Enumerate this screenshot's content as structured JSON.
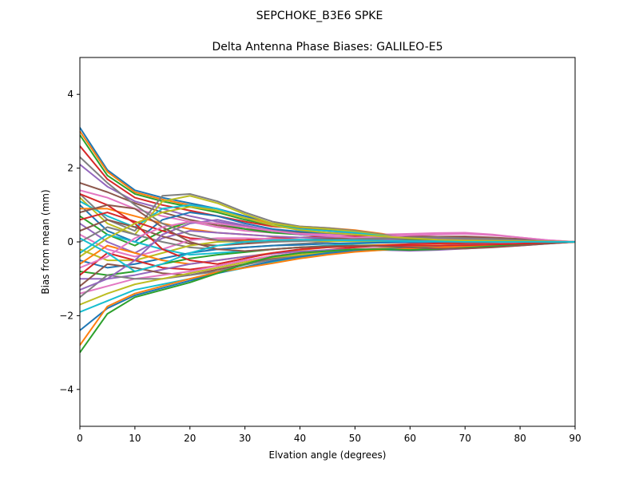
{
  "chart_data": {
    "type": "line",
    "suptitle": "SEPCHOKE_B3E6   SPKE",
    "title": "Delta Antenna Phase Biases: GALILEO-E5",
    "xlabel": "Elvation angle (degrees)",
    "ylabel": "Bias from mean (mm)",
    "xlim": [
      0,
      90
    ],
    "ylim": [
      -5,
      5
    ],
    "x_ticks": [
      0,
      10,
      20,
      30,
      40,
      50,
      60,
      70,
      80,
      90
    ],
    "y_ticks": [
      -4,
      -2,
      0,
      2,
      4
    ],
    "x_tick_labels": [
      "0",
      "10",
      "20",
      "30",
      "40",
      "50",
      "60",
      "70",
      "80",
      "90"
    ],
    "y_tick_labels": [
      "−4",
      "−2",
      "0",
      "2",
      "4"
    ],
    "grid": false,
    "legend": "none",
    "colors": [
      "#1f77b4",
      "#ff7f0e",
      "#2ca02c",
      "#d62728",
      "#9467bd",
      "#8c564b",
      "#e377c2",
      "#7f7f7f",
      "#bcbd22",
      "#17becf"
    ],
    "x": [
      0,
      5,
      10,
      15,
      20,
      25,
      30,
      35,
      40,
      45,
      50,
      55,
      60,
      65,
      70,
      75,
      80,
      85,
      90
    ],
    "series": [
      {
        "values": [
          3.1,
          1.95,
          1.4,
          1.2,
          1.05,
          0.9,
          0.7,
          0.5,
          0.4,
          0.35,
          0.3,
          0.2,
          0.12,
          0.08,
          0.05,
          0.03,
          0.02,
          0.01,
          0
        ]
      },
      {
        "values": [
          3.0,
          1.9,
          1.35,
          1.15,
          1.0,
          0.85,
          0.65,
          0.5,
          0.42,
          0.38,
          0.32,
          0.22,
          0.1,
          0.05,
          0.04,
          0.03,
          0.02,
          0.01,
          0
        ]
      },
      {
        "values": [
          2.9,
          1.8,
          1.3,
          1.1,
          0.95,
          0.8,
          0.6,
          0.45,
          0.4,
          0.34,
          0.28,
          0.18,
          0.08,
          0.05,
          0.04,
          0.03,
          0.02,
          0.01,
          0
        ]
      },
      {
        "values": [
          2.6,
          1.7,
          1.2,
          1.0,
          0.85,
          0.7,
          0.55,
          0.42,
          0.36,
          0.3,
          0.25,
          0.16,
          0.07,
          0.04,
          0.03,
          0.02,
          0.02,
          0.01,
          0
        ]
      },
      {
        "values": [
          2.1,
          1.5,
          1.1,
          0.9,
          0.7,
          0.55,
          0.42,
          0.32,
          0.28,
          0.25,
          0.22,
          0.18,
          0.14,
          0.1,
          0.07,
          0.05,
          0.03,
          0.01,
          0
        ]
      },
      {
        "values": [
          1.6,
          1.35,
          1.05,
          0.8,
          0.6,
          0.45,
          0.35,
          0.3,
          0.25,
          0.22,
          0.2,
          0.18,
          0.16,
          0.14,
          0.12,
          0.08,
          0.05,
          0.02,
          0
        ]
      },
      {
        "values": [
          1.4,
          1.2,
          0.9,
          0.7,
          0.55,
          0.4,
          0.3,
          0.25,
          0.22,
          0.2,
          0.18,
          0.2,
          0.22,
          0.24,
          0.25,
          0.2,
          0.12,
          0.05,
          0
        ]
      },
      {
        "values": [
          1.3,
          0.6,
          0.3,
          1.25,
          1.3,
          1.1,
          0.8,
          0.55,
          0.42,
          0.38,
          0.3,
          0.2,
          0.1,
          0.06,
          0.04,
          0.03,
          0.02,
          0.01,
          0
        ]
      },
      {
        "values": [
          1.2,
          0.5,
          0.2,
          1.1,
          1.25,
          1.05,
          0.75,
          0.5,
          0.4,
          0.35,
          0.28,
          0.18,
          0.09,
          0.05,
          0.04,
          0.03,
          0.02,
          0.01,
          0
        ]
      },
      {
        "values": [
          1.1,
          0.7,
          0.4,
          0.9,
          1.0,
          0.9,
          0.65,
          0.45,
          0.35,
          0.3,
          0.25,
          0.16,
          0.08,
          0.04,
          0.03,
          0.02,
          0.02,
          0.01,
          0
        ]
      },
      {
        "values": [
          1.0,
          0.3,
          0.0,
          0.6,
          0.8,
          0.7,
          0.5,
          0.35,
          0.28,
          0.24,
          0.2,
          0.12,
          0.06,
          0.03,
          0.02,
          0.02,
          0.01,
          0.0,
          0
        ]
      },
      {
        "values": [
          0.9,
          0.9,
          0.7,
          0.5,
          0.35,
          0.25,
          0.2,
          0.15,
          0.12,
          0.1,
          0.08,
          0.06,
          0.05,
          0.04,
          0.03,
          0.02,
          0.01,
          0.0,
          0
        ]
      },
      {
        "values": [
          0.7,
          0.2,
          -0.1,
          0.3,
          0.55,
          0.5,
          0.35,
          0.25,
          0.2,
          0.15,
          0.12,
          0.08,
          0.05,
          0.03,
          0.02,
          0.01,
          0.01,
          0.0,
          0
        ]
      },
      {
        "values": [
          0.6,
          0.8,
          0.55,
          0.3,
          0.1,
          0.05,
          0.05,
          0.1,
          0.12,
          0.14,
          0.15,
          0.12,
          0.1,
          0.08,
          0.06,
          0.04,
          0.02,
          0.01,
          0
        ]
      },
      {
        "values": [
          0.5,
          0.0,
          -0.3,
          0.1,
          0.3,
          0.25,
          0.2,
          0.15,
          0.12,
          0.1,
          0.08,
          0.05,
          0.03,
          0.02,
          0.01,
          0.01,
          0.0,
          0.0,
          0
        ]
      },
      {
        "values": [
          0.3,
          0.6,
          0.4,
          0.15,
          -0.05,
          -0.1,
          -0.05,
          0.0,
          0.05,
          0.08,
          0.1,
          0.1,
          0.12,
          0.14,
          0.15,
          0.12,
          0.08,
          0.03,
          0
        ]
      },
      {
        "values": [
          0.2,
          -0.2,
          -0.4,
          -0.2,
          0.05,
          0.1,
          0.1,
          0.08,
          0.06,
          0.05,
          0.04,
          0.03,
          0.02,
          0.01,
          0.01,
          0.0,
          0.0,
          0.0,
          0
        ]
      },
      {
        "values": [
          0.0,
          0.4,
          0.2,
          0.0,
          -0.15,
          -0.2,
          -0.15,
          -0.1,
          -0.05,
          0.0,
          0.05,
          0.08,
          0.1,
          0.1,
          0.08,
          0.06,
          0.04,
          0.02,
          0
        ]
      },
      {
        "values": [
          -0.2,
          -0.5,
          -0.5,
          -0.3,
          -0.1,
          0.0,
          0.02,
          0.03,
          0.03,
          0.02,
          0.02,
          0.01,
          0.0,
          0.0,
          0.0,
          0.0,
          0.0,
          0.0,
          0
        ]
      },
      {
        "values": [
          -0.3,
          0.2,
          0.0,
          -0.2,
          -0.35,
          -0.3,
          -0.25,
          -0.2,
          -0.15,
          -0.1,
          -0.05,
          -0.02,
          0.0,
          0.02,
          0.03,
          0.03,
          0.02,
          0.01,
          0
        ]
      },
      {
        "values": [
          -0.5,
          -0.7,
          -0.6,
          -0.45,
          -0.3,
          -0.2,
          -0.15,
          -0.1,
          -0.08,
          -0.05,
          -0.03,
          -0.02,
          -0.01,
          0.0,
          0.0,
          0.0,
          0.0,
          0.0,
          0
        ]
      },
      {
        "values": [
          -0.6,
          -0.1,
          -0.3,
          -0.5,
          -0.6,
          -0.5,
          -0.4,
          -0.3,
          -0.22,
          -0.15,
          -0.1,
          -0.08,
          -0.06,
          -0.05,
          -0.04,
          -0.03,
          -0.02,
          -0.01,
          0
        ]
      },
      {
        "values": [
          -0.8,
          -0.9,
          -0.8,
          -0.6,
          -0.45,
          -0.35,
          -0.28,
          -0.2,
          -0.15,
          -0.12,
          -0.1,
          -0.1,
          -0.12,
          -0.13,
          -0.12,
          -0.1,
          -0.07,
          -0.03,
          0
        ]
      },
      {
        "values": [
          -0.9,
          -0.3,
          -0.5,
          -0.7,
          -0.75,
          -0.65,
          -0.5,
          -0.38,
          -0.3,
          -0.22,
          -0.15,
          -0.1,
          -0.06,
          -0.04,
          -0.03,
          -0.02,
          -0.01,
          0.0,
          0
        ]
      },
      {
        "values": [
          -1.0,
          -1.0,
          -0.9,
          -0.75,
          -0.6,
          -0.5,
          -0.4,
          -0.32,
          -0.26,
          -0.22,
          -0.2,
          -0.22,
          -0.24,
          -0.22,
          -0.18,
          -0.14,
          -0.1,
          -0.05,
          0
        ]
      },
      {
        "values": [
          -1.2,
          -0.6,
          -0.7,
          -0.85,
          -0.9,
          -0.75,
          -0.6,
          -0.45,
          -0.35,
          -0.28,
          -0.22,
          -0.18,
          -0.14,
          -0.1,
          -0.07,
          -0.05,
          -0.03,
          -0.01,
          0
        ]
      },
      {
        "values": [
          -1.4,
          -1.2,
          -1.0,
          -0.9,
          -0.8,
          -0.65,
          -0.5,
          -0.38,
          -0.3,
          -0.25,
          -0.2,
          -0.16,
          -0.12,
          -0.1,
          -0.08,
          -0.06,
          -0.04,
          -0.02,
          0
        ]
      },
      {
        "values": [
          -1.5,
          -0.9,
          -1.0,
          -1.0,
          -0.9,
          -0.8,
          -0.62,
          -0.48,
          -0.38,
          -0.3,
          -0.24,
          -0.2,
          -0.16,
          -0.12,
          -0.09,
          -0.07,
          -0.05,
          -0.02,
          0
        ]
      },
      {
        "values": [
          -1.7,
          -1.4,
          -1.15,
          -1.0,
          -0.85,
          -0.7,
          -0.55,
          -0.42,
          -0.35,
          -0.28,
          -0.22,
          -0.18,
          -0.15,
          -0.12,
          -0.1,
          -0.08,
          -0.06,
          -0.03,
          0
        ]
      },
      {
        "values": [
          -1.9,
          -1.6,
          -1.3,
          -1.15,
          -1.0,
          -0.85,
          -0.7,
          -0.55,
          -0.42,
          -0.32,
          -0.26,
          -0.22,
          -0.2,
          -0.16,
          -0.12,
          -0.1,
          -0.07,
          -0.03,
          0
        ]
      },
      {
        "values": [
          -2.4,
          -1.8,
          -1.45,
          -1.25,
          -1.05,
          -0.85,
          -0.68,
          -0.52,
          -0.4,
          -0.3,
          -0.24,
          -0.2,
          -0.17,
          -0.14,
          -0.12,
          -0.1,
          -0.07,
          -0.03,
          0
        ]
      },
      {
        "values": [
          -2.8,
          -1.75,
          -1.4,
          -1.2,
          -1.0,
          -0.82,
          -0.7,
          -0.58,
          -0.45,
          -0.35,
          -0.27,
          -0.22,
          -0.18,
          -0.15,
          -0.12,
          -0.1,
          -0.07,
          -0.03,
          0
        ]
      },
      {
        "values": [
          -3.0,
          -1.95,
          -1.5,
          -1.3,
          -1.1,
          -0.85,
          -0.6,
          -0.4,
          -0.3,
          -0.25,
          -0.2,
          -0.2,
          -0.22,
          -0.2,
          -0.16,
          -0.12,
          -0.08,
          -0.04,
          0
        ]
      },
      {
        "values": [
          1.3,
          1.0,
          0.5,
          -0.2,
          -0.5,
          -0.6,
          -0.45,
          -0.3,
          -0.2,
          -0.15,
          -0.12,
          -0.1,
          -0.1,
          -0.1,
          -0.09,
          -0.07,
          -0.05,
          -0.02,
          0
        ]
      },
      {
        "values": [
          -1.3,
          -1.0,
          -0.5,
          0.2,
          0.5,
          0.6,
          0.45,
          0.3,
          0.2,
          0.15,
          0.12,
          0.1,
          0.1,
          0.1,
          0.09,
          0.07,
          0.05,
          0.02,
          0
        ]
      },
      {
        "values": [
          0.8,
          1.0,
          0.9,
          0.4,
          0.0,
          -0.2,
          -0.25,
          -0.2,
          -0.15,
          -0.12,
          -0.1,
          -0.12,
          -0.15,
          -0.18,
          -0.18,
          -0.15,
          -0.1,
          -0.05,
          0
        ]
      },
      {
        "values": [
          -0.7,
          -0.4,
          0.1,
          0.4,
          0.55,
          0.5,
          0.4,
          0.3,
          0.22,
          0.16,
          0.12,
          0.14,
          0.18,
          0.2,
          0.22,
          0.18,
          0.12,
          0.05,
          0
        ]
      },
      {
        "values": [
          2.3,
          1.6,
          1.0,
          0.5,
          0.2,
          0.05,
          0.0,
          0.0,
          0.02,
          0.05,
          0.08,
          0.1,
          0.12,
          0.12,
          0.1,
          0.08,
          0.05,
          0.02,
          0
        ]
      },
      {
        "values": [
          -0.4,
          0.1,
          0.5,
          0.8,
          0.95,
          0.85,
          0.65,
          0.45,
          0.32,
          0.25,
          0.2,
          0.15,
          0.1,
          0.06,
          0.04,
          0.03,
          0.02,
          0.01,
          0
        ]
      },
      {
        "values": [
          0.1,
          -0.3,
          -0.8,
          -0.6,
          -0.3,
          -0.1,
          0.0,
          0.05,
          0.06,
          0.05,
          0.04,
          0.03,
          0.02,
          0.01,
          0.0,
          0.0,
          0.0,
          0.0,
          0
        ]
      }
    ]
  }
}
